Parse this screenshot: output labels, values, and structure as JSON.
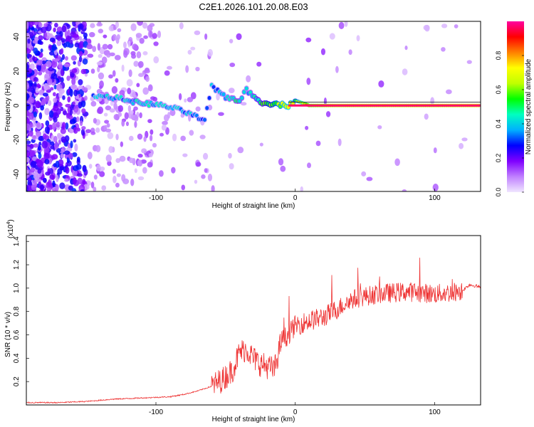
{
  "title": "C2E1.2026.101.20.08.E03",
  "chart_data": [
    {
      "type": "heatmap",
      "xlabel": "Height of straight line (km)",
      "ylabel": "Frequency (Hz)",
      "xlim": [
        -193,
        133
      ],
      "ylim": [
        -50,
        49
      ],
      "xticks": [
        -100,
        0,
        100
      ],
      "yticks": [
        -40,
        -20,
        0,
        20,
        40
      ],
      "colorbar": {
        "label": "Normalized spectral amplitude",
        "range": [
          0.0,
          1.0
        ],
        "ticks": [
          0.0,
          0.2,
          0.4,
          0.6,
          0.8
        ],
        "tick_labels": [
          "0.0",
          "0.2",
          "0.4",
          "0.6",
          "0.8"
        ],
        "colors": [
          "#f0e6ff",
          "#c080ff",
          "#8000ff",
          "#0000ff",
          "#00b0ff",
          "#00ffc0",
          "#00ff00",
          "#c0ff00",
          "#ffff00",
          "#ff8000",
          "#ff0000",
          "#ff00a0"
        ]
      },
      "tone_track": [
        {
          "x": -145,
          "y": 6,
          "v": 0.35
        },
        {
          "x": -135,
          "y": 5,
          "v": 0.4
        },
        {
          "x": -125,
          "y": 4,
          "v": 0.38
        },
        {
          "x": -115,
          "y": 2,
          "v": 0.42
        },
        {
          "x": -105,
          "y": 1,
          "v": 0.4
        },
        {
          "x": -95,
          "y": 0,
          "v": 0.38
        },
        {
          "x": -85,
          "y": -2,
          "v": 0.36
        },
        {
          "x": -75,
          "y": -5,
          "v": 0.38
        },
        {
          "x": -65,
          "y": -9,
          "v": 0.3
        },
        {
          "x": -60,
          "y": 11,
          "v": 0.35
        },
        {
          "x": -50,
          "y": 5,
          "v": 0.4
        },
        {
          "x": -40,
          "y": 3,
          "v": 0.45
        },
        {
          "x": -35,
          "y": 9,
          "v": 0.4
        },
        {
          "x": -25,
          "y": 2,
          "v": 0.5
        },
        {
          "x": -15,
          "y": 1,
          "v": 0.6
        },
        {
          "x": -5,
          "y": 0,
          "v": 0.7
        },
        {
          "x": 0,
          "y": 3,
          "v": 0.6
        },
        {
          "x": 10,
          "y": 0,
          "v": 0.9
        },
        {
          "x": 30,
          "y": 0,
          "v": 0.95
        },
        {
          "x": 60,
          "y": 0,
          "v": 0.97
        },
        {
          "x": 95,
          "y": 0,
          "v": 0.95
        },
        {
          "x": 133,
          "y": 0,
          "v": 0.98
        }
      ]
    },
    {
      "type": "line",
      "xlabel": "Height of straight line (km)",
      "ylabel": "SNR (10 * v/v)",
      "yscale_label": "(x10",
      "yscale_exp": "4",
      "yscale_close": ")",
      "xlim": [
        -193,
        133
      ],
      "ylim": [
        0,
        1.45
      ],
      "xticks": [
        -100,
        0,
        100
      ],
      "yticks": [
        0.2,
        0.4,
        0.6,
        0.8,
        1.0,
        1.2,
        1.4
      ],
      "ytick_labels": [
        "0.2",
        "0.4",
        "0.6",
        "0.8",
        "1.0",
        "1.2",
        "1.4"
      ],
      "color": "#ee3333",
      "series": [
        {
          "name": "SNR",
          "x": [
            -193,
            -170,
            -150,
            -130,
            -110,
            -90,
            -80,
            -70,
            -60,
            -52,
            -45,
            -40,
            -35,
            -30,
            -25,
            -20,
            -15,
            -10,
            -5,
            0,
            10,
            20,
            30,
            40,
            50,
            60,
            70,
            80,
            90,
            100,
            110,
            120,
            125,
            133
          ],
          "y": [
            0.02,
            0.02,
            0.03,
            0.05,
            0.06,
            0.07,
            0.09,
            0.12,
            0.16,
            0.22,
            0.3,
            0.45,
            0.48,
            0.4,
            0.35,
            0.33,
            0.3,
            0.55,
            0.6,
            0.68,
            0.72,
            0.75,
            0.82,
            0.9,
            0.93,
            0.95,
            0.96,
            0.97,
            0.96,
            0.95,
            0.96,
            0.98,
            1.03,
            1.01
          ]
        }
      ]
    }
  ]
}
